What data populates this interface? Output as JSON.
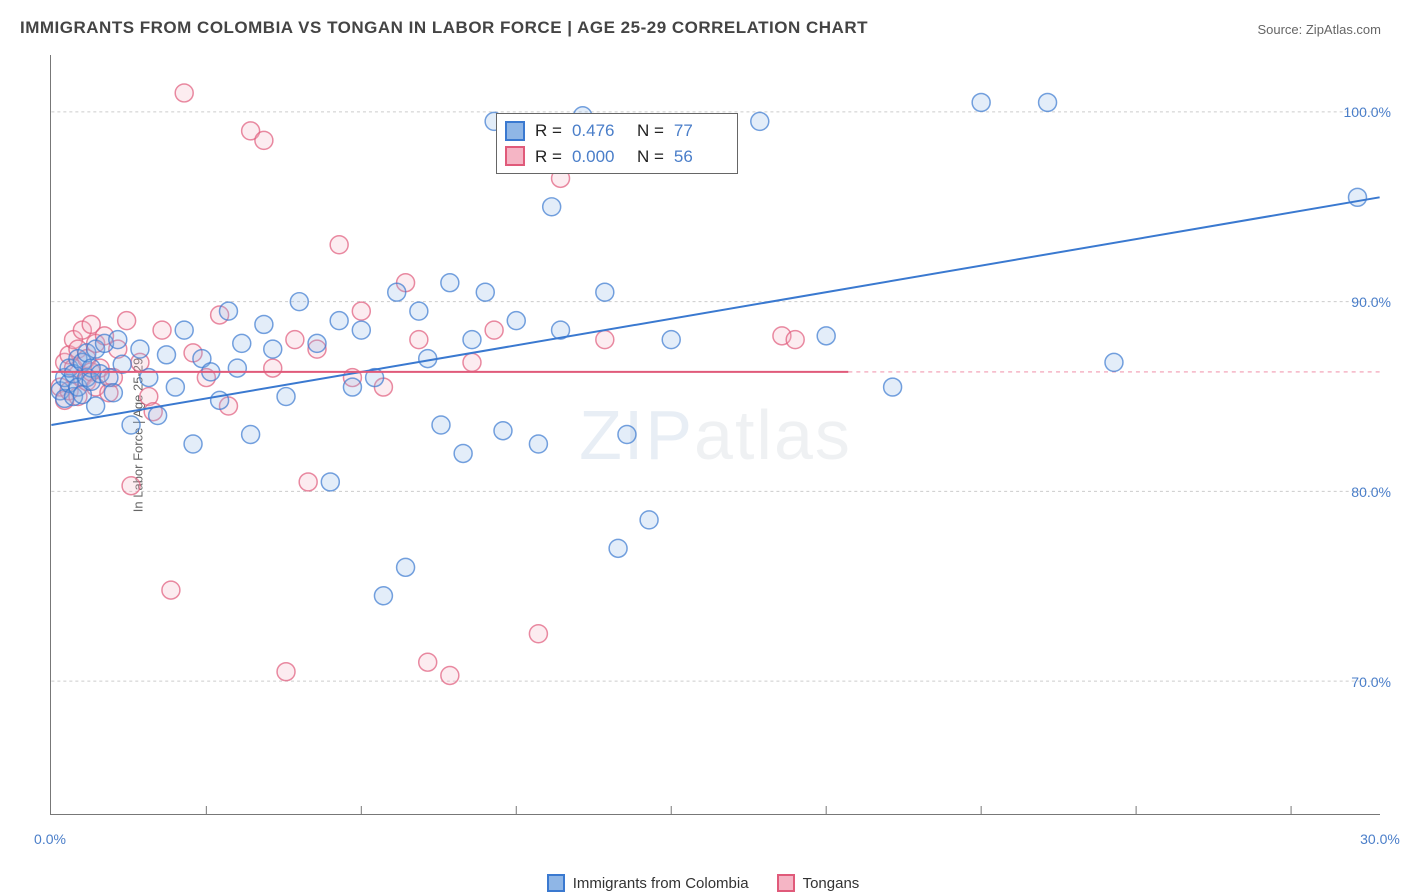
{
  "title": "IMMIGRANTS FROM COLOMBIA VS TONGAN IN LABOR FORCE | AGE 25-29 CORRELATION CHART",
  "source_label": "Source: ",
  "source_name": "ZipAtlas.com",
  "y_axis_label": "In Labor Force | Age 25-29",
  "watermark_bold": "ZIP",
  "watermark_thin": "atlas",
  "chart": {
    "type": "scatter",
    "xlim": [
      0,
      30
    ],
    "ylim": [
      63,
      103
    ],
    "x_ticks": [
      0,
      30
    ],
    "x_tick_labels": [
      "0.0%",
      "30.0%"
    ],
    "x_minor_ticks": [
      3.5,
      7,
      10.5,
      14,
      17.5,
      21,
      24.5,
      28
    ],
    "y_ticks": [
      70,
      80,
      90,
      100
    ],
    "y_tick_labels": [
      "70.0%",
      "80.0%",
      "90.0%",
      "100.0%"
    ],
    "grid_color": "#cccccc",
    "grid_dash": "3,3",
    "background_color": "#ffffff",
    "marker_radius": 9,
    "marker_stroke_width": 1.5,
    "marker_fill_opacity": 0.25,
    "trend_line_width": 2,
    "series": [
      {
        "id": "colombia",
        "legend_label": "Immigrants from Colombia",
        "color_stroke": "#3a79d0",
        "color_fill": "#8fb6e6",
        "R": "0.476",
        "N": "77",
        "trend": {
          "x1": 0,
          "y1": 83.5,
          "x2": 30,
          "y2": 95.5
        },
        "trend_dash_x": null,
        "points": [
          [
            0.2,
            85.3
          ],
          [
            0.3,
            86.0
          ],
          [
            0.3,
            84.9
          ],
          [
            0.4,
            85.7
          ],
          [
            0.4,
            86.5
          ],
          [
            0.5,
            86.2
          ],
          [
            0.5,
            85.0
          ],
          [
            0.6,
            87.0
          ],
          [
            0.6,
            85.5
          ],
          [
            0.7,
            86.8
          ],
          [
            0.7,
            85.1
          ],
          [
            0.8,
            86.0
          ],
          [
            0.8,
            87.3
          ],
          [
            0.9,
            86.5
          ],
          [
            0.9,
            85.8
          ],
          [
            1.0,
            87.5
          ],
          [
            1.0,
            84.5
          ],
          [
            1.1,
            86.2
          ],
          [
            1.2,
            87.8
          ],
          [
            1.3,
            86.0
          ],
          [
            1.4,
            85.2
          ],
          [
            1.5,
            88.0
          ],
          [
            1.6,
            86.7
          ],
          [
            1.8,
            83.5
          ],
          [
            2.0,
            87.5
          ],
          [
            2.2,
            86.0
          ],
          [
            2.4,
            84.0
          ],
          [
            2.6,
            87.2
          ],
          [
            2.8,
            85.5
          ],
          [
            3.0,
            88.5
          ],
          [
            3.2,
            82.5
          ],
          [
            3.4,
            87.0
          ],
          [
            3.6,
            86.3
          ],
          [
            3.8,
            84.8
          ],
          [
            4.0,
            89.5
          ],
          [
            4.2,
            86.5
          ],
          [
            4.5,
            83.0
          ],
          [
            4.8,
            88.8
          ],
          [
            5.0,
            87.5
          ],
          [
            5.3,
            85.0
          ],
          [
            5.6,
            90.0
          ],
          [
            6.0,
            87.8
          ],
          [
            6.3,
            80.5
          ],
          [
            6.5,
            89.0
          ],
          [
            7.0,
            88.5
          ],
          [
            7.3,
            86.0
          ],
          [
            7.5,
            74.5
          ],
          [
            7.8,
            90.5
          ],
          [
            8.0,
            76.0
          ],
          [
            8.3,
            89.5
          ],
          [
            8.5,
            87.0
          ],
          [
            8.8,
            83.5
          ],
          [
            9.0,
            91.0
          ],
          [
            9.3,
            82.0
          ],
          [
            9.5,
            88.0
          ],
          [
            9.8,
            90.5
          ],
          [
            10.0,
            99.5
          ],
          [
            10.2,
            83.2
          ],
          [
            10.5,
            89.0
          ],
          [
            11.0,
            82.5
          ],
          [
            11.3,
            95.0
          ],
          [
            11.5,
            88.5
          ],
          [
            12.0,
            99.8
          ],
          [
            12.5,
            90.5
          ],
          [
            12.8,
            77.0
          ],
          [
            13.0,
            83.0
          ],
          [
            13.5,
            78.5
          ],
          [
            14.0,
            88.0
          ],
          [
            16.0,
            99.5
          ],
          [
            17.5,
            88.2
          ],
          [
            19.0,
            85.5
          ],
          [
            21.0,
            100.5
          ],
          [
            22.5,
            100.5
          ],
          [
            24.0,
            86.8
          ],
          [
            29.5,
            95.5
          ],
          [
            6.8,
            85.5
          ],
          [
            4.3,
            87.8
          ]
        ]
      },
      {
        "id": "tongans",
        "legend_label": "Tongans",
        "color_stroke": "#e05a7a",
        "color_fill": "#f5b5c5",
        "R": "0.000",
        "N": "56",
        "trend": {
          "x1": 0,
          "y1": 86.3,
          "x2": 18,
          "y2": 86.3
        },
        "trend_dash_x": 18,
        "points": [
          [
            0.2,
            85.5
          ],
          [
            0.3,
            86.8
          ],
          [
            0.3,
            84.8
          ],
          [
            0.4,
            87.2
          ],
          [
            0.4,
            85.3
          ],
          [
            0.5,
            86.5
          ],
          [
            0.5,
            88.0
          ],
          [
            0.6,
            85.0
          ],
          [
            0.6,
            87.5
          ],
          [
            0.7,
            86.0
          ],
          [
            0.7,
            88.5
          ],
          [
            0.8,
            85.8
          ],
          [
            0.8,
            87.0
          ],
          [
            0.9,
            86.3
          ],
          [
            0.9,
            88.8
          ],
          [
            1.0,
            85.5
          ],
          [
            1.0,
            87.8
          ],
          [
            1.1,
            86.5
          ],
          [
            1.2,
            88.2
          ],
          [
            1.3,
            85.2
          ],
          [
            1.5,
            87.5
          ],
          [
            1.7,
            89.0
          ],
          [
            1.8,
            80.3
          ],
          [
            2.0,
            86.8
          ],
          [
            2.2,
            85.0
          ],
          [
            2.5,
            88.5
          ],
          [
            2.7,
            74.8
          ],
          [
            3.0,
            101.0
          ],
          [
            3.2,
            87.3
          ],
          [
            3.5,
            86.0
          ],
          [
            3.8,
            89.3
          ],
          [
            4.0,
            84.5
          ],
          [
            4.5,
            99.0
          ],
          [
            4.8,
            98.5
          ],
          [
            5.0,
            86.5
          ],
          [
            5.3,
            70.5
          ],
          [
            5.5,
            88.0
          ],
          [
            5.8,
            80.5
          ],
          [
            6.0,
            87.5
          ],
          [
            6.5,
            93.0
          ],
          [
            6.8,
            86.0
          ],
          [
            7.0,
            89.5
          ],
          [
            7.5,
            85.5
          ],
          [
            8.0,
            91.0
          ],
          [
            8.3,
            88.0
          ],
          [
            8.5,
            71.0
          ],
          [
            9.0,
            70.3
          ],
          [
            9.5,
            86.8
          ],
          [
            10.0,
            88.5
          ],
          [
            11.0,
            72.5
          ],
          [
            11.5,
            96.5
          ],
          [
            12.5,
            88.0
          ],
          [
            16.5,
            88.2
          ],
          [
            16.8,
            88.0
          ],
          [
            2.3,
            84.2
          ],
          [
            1.4,
            86.0
          ]
        ]
      }
    ]
  },
  "stats_box": {
    "R_label": "R  =",
    "N_label": "N  ="
  },
  "legend": {
    "position": "bottom-center"
  }
}
